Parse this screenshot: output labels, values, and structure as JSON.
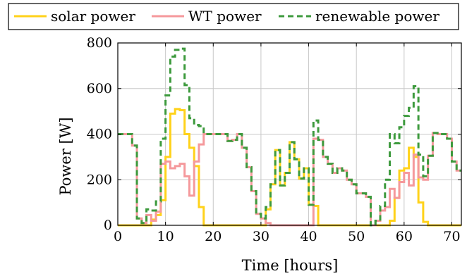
{
  "chart_data": {
    "type": "line",
    "step": true,
    "xlabel": "Time [hours]",
    "ylabel": "Power [W]",
    "xlim": [
      0,
      72
    ],
    "ylim": [
      0,
      800
    ],
    "xticks": [
      0,
      10,
      20,
      30,
      40,
      50,
      60,
      70
    ],
    "yticks": [
      0,
      200,
      400,
      600,
      800
    ],
    "grid": true,
    "legend_position": "top",
    "colors": {
      "solar": "#ffd21a",
      "wt": "#f5999c",
      "renewable": "#3d9a3d",
      "grid": "#c8c8c8"
    },
    "series": [
      {
        "name": "solar power",
        "dash": "solid",
        "x": [
          0,
          1,
          2,
          3,
          4,
          5,
          6,
          7,
          8,
          9,
          10,
          11,
          12,
          13,
          14,
          15,
          16,
          17,
          18,
          19,
          20,
          21,
          22,
          23,
          24,
          25,
          26,
          27,
          28,
          29,
          30,
          31,
          32,
          33,
          34,
          35,
          36,
          37,
          38,
          39,
          40,
          41,
          42,
          43,
          44,
          45,
          46,
          47,
          48,
          49,
          50,
          51,
          52,
          53,
          54,
          55,
          56,
          57,
          58,
          59,
          60,
          61,
          62,
          63,
          64,
          65,
          66,
          67,
          68,
          69,
          70,
          71,
          72
        ],
        "values": [
          0,
          0,
          0,
          0,
          0,
          0,
          0,
          25,
          45,
          110,
          300,
          490,
          510,
          505,
          400,
          340,
          260,
          80,
          0,
          0,
          0,
          0,
          0,
          0,
          0,
          0,
          0,
          0,
          0,
          0,
          0,
          70,
          180,
          330,
          175,
          230,
          365,
          290,
          205,
          250,
          90,
          85,
          0,
          0,
          0,
          0,
          0,
          0,
          0,
          0,
          0,
          0,
          0,
          0,
          0,
          0,
          0,
          20,
          120,
          240,
          250,
          340,
          300,
          100,
          15,
          0,
          0,
          0,
          0,
          0,
          0,
          0,
          0
        ]
      },
      {
        "name": "WT power",
        "dash": "solid",
        "x": [
          0,
          1,
          2,
          3,
          4,
          5,
          6,
          7,
          8,
          9,
          10,
          11,
          12,
          13,
          14,
          15,
          16,
          17,
          18,
          19,
          20,
          21,
          22,
          23,
          24,
          25,
          26,
          27,
          28,
          29,
          30,
          31,
          32,
          33,
          34,
          35,
          36,
          37,
          38,
          39,
          40,
          41,
          42,
          43,
          44,
          45,
          46,
          47,
          48,
          49,
          50,
          51,
          52,
          53,
          54,
          55,
          56,
          57,
          58,
          59,
          60,
          61,
          62,
          63,
          64,
          65,
          66,
          67,
          68,
          69,
          70,
          71,
          72
        ],
        "values": [
          400,
          400,
          400,
          350,
          30,
          10,
          45,
          20,
          60,
          270,
          280,
          250,
          260,
          270,
          215,
          130,
          280,
          355,
          400,
          400,
          400,
          400,
          400,
          370,
          375,
          400,
          340,
          255,
          150,
          50,
          30,
          10,
          0,
          0,
          0,
          0,
          0,
          0,
          0,
          0,
          0,
          380,
          375,
          300,
          270,
          230,
          250,
          240,
          200,
          180,
          140,
          140,
          125,
          0,
          20,
          65,
          80,
          160,
          120,
          190,
          230,
          175,
          310,
          210,
          200,
          305,
          405,
          400,
          400,
          380,
          280,
          240,
          230
        ]
      },
      {
        "name": "renewable power",
        "dash": "dashed",
        "x": [
          0,
          1,
          2,
          3,
          4,
          5,
          6,
          7,
          8,
          9,
          10,
          11,
          12,
          13,
          14,
          15,
          16,
          17,
          18,
          19,
          20,
          21,
          22,
          23,
          24,
          25,
          26,
          27,
          28,
          29,
          30,
          31,
          32,
          33,
          34,
          35,
          36,
          37,
          38,
          39,
          40,
          41,
          42,
          43,
          44,
          45,
          46,
          47,
          48,
          49,
          50,
          51,
          52,
          53,
          54,
          55,
          56,
          57,
          58,
          59,
          60,
          61,
          62,
          63,
          64,
          65,
          66,
          67,
          68,
          69,
          70,
          71,
          72
        ],
        "values": [
          400,
          400,
          400,
          350,
          30,
          10,
          70,
          65,
          105,
          380,
          570,
          740,
          770,
          775,
          615,
          470,
          440,
          435,
          400,
          400,
          400,
          400,
          400,
          370,
          375,
          400,
          340,
          255,
          150,
          50,
          30,
          80,
          180,
          330,
          175,
          230,
          365,
          290,
          205,
          250,
          90,
          460,
          375,
          300,
          270,
          230,
          250,
          240,
          200,
          180,
          140,
          140,
          125,
          0,
          20,
          85,
          200,
          400,
          360,
          430,
          480,
          515,
          610,
          310,
          215,
          305,
          405,
          400,
          400,
          380,
          280,
          240,
          230
        ]
      }
    ]
  }
}
